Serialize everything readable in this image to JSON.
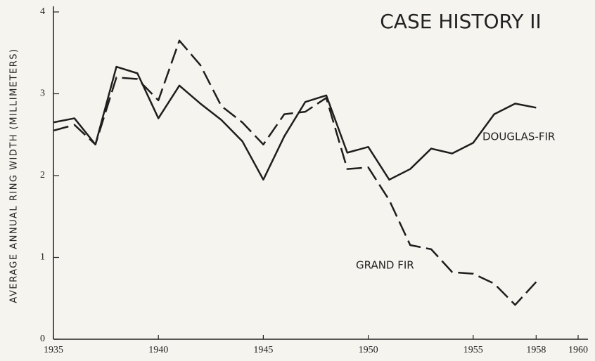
{
  "chart_data": {
    "type": "line",
    "title": "CASE HISTORY II",
    "y_label": "AVERAGE ANNUAL RING WIDTH (MILLIMETERS)",
    "x": [
      1935,
      1936,
      1937,
      1938,
      1939,
      1940,
      1941,
      1942,
      1943,
      1944,
      1945,
      1946,
      1947,
      1948,
      1949,
      1950,
      1951,
      1952,
      1953,
      1954,
      1955,
      1956,
      1957,
      1958
    ],
    "series": [
      {
        "name": "DOUGLAS-FIR",
        "color": "#1e1e1e",
        "dash": false,
        "values": [
          2.65,
          2.7,
          2.38,
          3.33,
          3.25,
          2.7,
          3.1,
          2.88,
          2.68,
          2.42,
          1.95,
          2.48,
          2.9,
          2.98,
          2.28,
          2.35,
          1.95,
          2.08,
          2.33,
          2.27,
          2.4,
          2.75,
          2.88,
          2.83
        ]
      },
      {
        "name": "GRAND FIR",
        "color": "#1e1e1e",
        "dash": true,
        "values": [
          2.55,
          2.62,
          2.38,
          3.2,
          3.18,
          2.92,
          3.65,
          3.35,
          2.85,
          2.65,
          2.38,
          2.75,
          2.78,
          2.95,
          2.08,
          2.1,
          1.7,
          1.15,
          1.1,
          0.82,
          0.8,
          0.68,
          0.42,
          0.7
        ]
      }
    ],
    "xlim": [
      1935,
      1960
    ],
    "xticks": [
      1935,
      1940,
      1945,
      1950,
      1955,
      1958,
      1960
    ],
    "ylim": [
      0,
      4
    ],
    "yticks": [
      0,
      1,
      2,
      3,
      4
    ]
  }
}
